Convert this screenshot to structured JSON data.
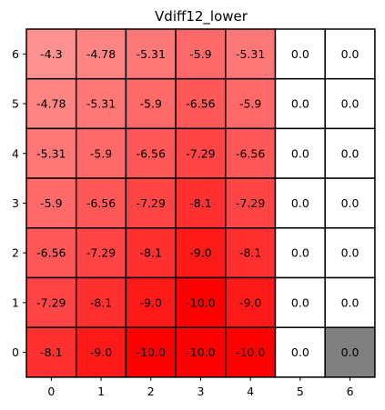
{
  "chart_data": {
    "type": "heatmap",
    "title": "Vdiff12_lower",
    "xlabel": "",
    "ylabel": "",
    "x_ticks": [
      "0",
      "1",
      "2",
      "3",
      "4",
      "5",
      "6"
    ],
    "y_ticks": [
      "0",
      "1",
      "2",
      "3",
      "4",
      "5",
      "6"
    ],
    "y_order": "bottom-to-top",
    "color_scale": {
      "min": -10.0,
      "max": 0.0,
      "min_color": "#ff0000",
      "max_color": "#ffffff"
    },
    "special_cells": [
      {
        "row": 0,
        "col": 6,
        "color": "#808080"
      }
    ],
    "grid": true,
    "rows": [
      {
        "y": 6,
        "values": [
          -4.3,
          -4.78,
          -5.31,
          -5.9,
          -5.31,
          0.0,
          0.0
        ],
        "labels": [
          "-4.3",
          "-4.78",
          "-5.31",
          "-5.9",
          "-5.31",
          "0.0",
          "0.0"
        ]
      },
      {
        "y": 5,
        "values": [
          -4.78,
          -5.31,
          -5.9,
          -6.56,
          -5.9,
          0.0,
          0.0
        ],
        "labels": [
          "-4.78",
          "-5.31",
          "-5.9",
          "-6.56",
          "-5.9",
          "0.0",
          "0.0"
        ]
      },
      {
        "y": 4,
        "values": [
          -5.31,
          -5.9,
          -6.56,
          -7.29,
          -6.56,
          0.0,
          0.0
        ],
        "labels": [
          "-5.31",
          "-5.9",
          "-6.56",
          "-7.29",
          "-6.56",
          "0.0",
          "0.0"
        ]
      },
      {
        "y": 3,
        "values": [
          -5.9,
          -6.56,
          -7.29,
          -8.1,
          -7.29,
          0.0,
          0.0
        ],
        "labels": [
          "-5.9",
          "-6.56",
          "-7.29",
          "-8.1",
          "-7.29",
          "0.0",
          "0.0"
        ]
      },
      {
        "y": 2,
        "values": [
          -6.56,
          -7.29,
          -8.1,
          -9.0,
          -8.1,
          0.0,
          0.0
        ],
        "labels": [
          "-6.56",
          "-7.29",
          "-8.1",
          "-9.0",
          "-8.1",
          "0.0",
          "0.0"
        ]
      },
      {
        "y": 1,
        "values": [
          -7.29,
          -8.1,
          -9.0,
          -10.0,
          -9.0,
          0.0,
          0.0
        ],
        "labels": [
          "-7.29",
          "-8.1",
          "-9.0",
          "-10.0",
          "-9.0",
          "0.0",
          "0.0"
        ]
      },
      {
        "y": 0,
        "values": [
          -8.1,
          -9.0,
          -10.0,
          -10.0,
          -10.0,
          0.0,
          0.0
        ],
        "labels": [
          "-8.1",
          "-9.0",
          "-10.0",
          "-10.0",
          "-10.0",
          "0.0",
          "0.0"
        ]
      }
    ]
  }
}
